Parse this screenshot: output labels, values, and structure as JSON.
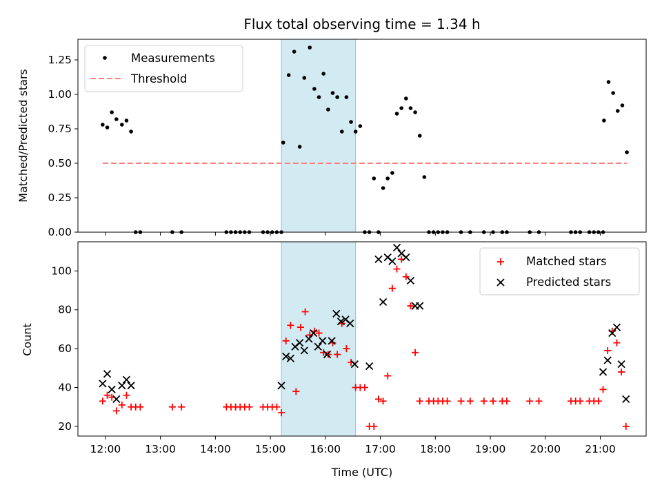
{
  "chart_data": [
    {
      "type": "scatter",
      "title": "Flux total observing time = 1.34 h",
      "xlabel": "",
      "ylabel": "Matched/Predicted stars",
      "xlim": [
        "11:30",
        "21:50"
      ],
      "ylim": [
        0,
        1.4
      ],
      "yticks": [
        "0.00",
        "0.25",
        "0.50",
        "0.75",
        "1.00",
        "1.25"
      ],
      "grid": false,
      "legend_position": "top-left",
      "shaded_interval": [
        "15:12",
        "16:33"
      ],
      "shade_color": "#add8e6",
      "series": [
        {
          "name": "Measurements",
          "color": "#000000",
          "marker": "dot",
          "points": [
            [
              "11:57",
              0.78
            ],
            [
              "12:02",
              0.76
            ],
            [
              "12:07",
              0.87
            ],
            [
              "12:12",
              0.82
            ],
            [
              "12:18",
              0.78
            ],
            [
              "12:23",
              0.81
            ],
            [
              "12:28",
              0.73
            ],
            [
              "12:33",
              0
            ],
            [
              "12:38",
              0
            ],
            [
              "13:13",
              0
            ],
            [
              "13:23",
              0
            ],
            [
              "14:12",
              0
            ],
            [
              "14:17",
              0
            ],
            [
              "14:22",
              0
            ],
            [
              "14:27",
              0
            ],
            [
              "14:32",
              0
            ],
            [
              "14:37",
              0
            ],
            [
              "14:52",
              0
            ],
            [
              "14:57",
              0
            ],
            [
              "15:02",
              0
            ],
            [
              "15:07",
              0
            ],
            [
              "15:12",
              0
            ],
            [
              "15:14",
              0.65
            ],
            [
              "15:20",
              1.14
            ],
            [
              "15:26",
              1.31
            ],
            [
              "15:32",
              0.62
            ],
            [
              "15:37",
              1.12
            ],
            [
              "15:43",
              1.34
            ],
            [
              "15:48",
              1.04
            ],
            [
              "15:53",
              0.98
            ],
            [
              "15:58",
              1.15
            ],
            [
              "16:03",
              0.89
            ],
            [
              "16:08",
              1.01
            ],
            [
              "16:13",
              0.98
            ],
            [
              "16:18",
              0.73
            ],
            [
              "16:23",
              0.98
            ],
            [
              "16:28",
              0.8
            ],
            [
              "16:33",
              0.73
            ],
            [
              "16:38",
              0.77
            ],
            [
              "16:43",
              0
            ],
            [
              "16:48",
              0
            ],
            [
              "16:53",
              0.39
            ],
            [
              "16:58",
              0
            ],
            [
              "17:03",
              0.32
            ],
            [
              "17:08",
              0.39
            ],
            [
              "17:13",
              0.43
            ],
            [
              "17:18",
              0.86
            ],
            [
              "17:23",
              0.9
            ],
            [
              "17:28",
              0.97
            ],
            [
              "17:33",
              0.9
            ],
            [
              "17:38",
              0.87
            ],
            [
              "17:43",
              0.7
            ],
            [
              "17:48",
              0.4
            ],
            [
              "17:53",
              0
            ],
            [
              "17:58",
              0
            ],
            [
              "18:03",
              0
            ],
            [
              "18:08",
              0
            ],
            [
              "18:13",
              0
            ],
            [
              "18:28",
              0
            ],
            [
              "18:38",
              0
            ],
            [
              "18:53",
              0
            ],
            [
              "19:03",
              0
            ],
            [
              "19:13",
              0
            ],
            [
              "19:18",
              0
            ],
            [
              "19:43",
              0
            ],
            [
              "19:53",
              0
            ],
            [
              "20:28",
              0
            ],
            [
              "20:33",
              0
            ],
            [
              "20:38",
              0
            ],
            [
              "20:48",
              0
            ],
            [
              "20:53",
              0
            ],
            [
              "20:58",
              0
            ],
            [
              "21:03",
              0
            ],
            [
              "21:04",
              0.81
            ],
            [
              "21:09",
              1.09
            ],
            [
              "21:14",
              1.01
            ],
            [
              "21:19",
              0.88
            ],
            [
              "21:24",
              0.92
            ],
            [
              "21:29",
              0.58
            ]
          ]
        },
        {
          "name": "Threshold",
          "color": "#ff7f7f",
          "line_style": "dashed",
          "points": [
            [
              "11:57",
              0.5
            ],
            [
              "21:29",
              0.5
            ]
          ]
        }
      ]
    },
    {
      "type": "scatter",
      "title": "",
      "xlabel": "Time (UTC)",
      "ylabel": "Count",
      "xlim": [
        "11:30",
        "21:50"
      ],
      "ylim": [
        15,
        115
      ],
      "yticks": [
        "20",
        "40",
        "60",
        "80",
        "100"
      ],
      "xticks": [
        "12:00",
        "13:00",
        "14:00",
        "15:00",
        "16:00",
        "17:00",
        "18:00",
        "19:00",
        "20:00",
        "21:00"
      ],
      "grid": false,
      "legend_position": "top-right",
      "shaded_interval": [
        "15:12",
        "16:33"
      ],
      "shade_color": "#add8e6",
      "series": [
        {
          "name": "Matched stars",
          "color": "#ff0000",
          "marker": "plus",
          "points": [
            [
              "11:57",
              33
            ],
            [
              "12:02",
              36
            ],
            [
              "12:07",
              35
            ],
            [
              "12:12",
              28
            ],
            [
              "12:18",
              31
            ],
            [
              "12:23",
              36
            ],
            [
              "12:28",
              30
            ],
            [
              "12:33",
              30
            ],
            [
              "12:38",
              30
            ],
            [
              "13:13",
              30
            ],
            [
              "13:23",
              30
            ],
            [
              "14:12",
              30
            ],
            [
              "14:17",
              30
            ],
            [
              "14:22",
              30
            ],
            [
              "14:27",
              30
            ],
            [
              "14:32",
              30
            ],
            [
              "14:37",
              30
            ],
            [
              "14:52",
              30
            ],
            [
              "14:57",
              30
            ],
            [
              "15:02",
              30
            ],
            [
              "15:07",
              30
            ],
            [
              "15:12",
              27
            ],
            [
              "15:17",
              64
            ],
            [
              "15:22",
              72
            ],
            [
              "15:28",
              38
            ],
            [
              "15:33",
              71
            ],
            [
              "15:38",
              79
            ],
            [
              "15:43",
              67
            ],
            [
              "15:48",
              69
            ],
            [
              "15:53",
              68
            ],
            [
              "15:58",
              58
            ],
            [
              "16:03",
              57
            ],
            [
              "16:08",
              63
            ],
            [
              "16:13",
              57
            ],
            [
              "16:18",
              73
            ],
            [
              "16:23",
              60
            ],
            [
              "16:28",
              53
            ],
            [
              "16:33",
              40
            ],
            [
              "16:38",
              40
            ],
            [
              "16:43",
              40
            ],
            [
              "16:48",
              20
            ],
            [
              "16:53",
              20
            ],
            [
              "16:58",
              34
            ],
            [
              "17:03",
              33
            ],
            [
              "17:08",
              46
            ],
            [
              "17:13",
              91
            ],
            [
              "17:18",
              101
            ],
            [
              "17:23",
              106
            ],
            [
              "17:28",
              97
            ],
            [
              "17:33",
              82
            ],
            [
              "17:38",
              58
            ],
            [
              "17:43",
              33
            ],
            [
              "17:53",
              33
            ],
            [
              "17:58",
              33
            ],
            [
              "18:03",
              33
            ],
            [
              "18:08",
              33
            ],
            [
              "18:13",
              33
            ],
            [
              "18:28",
              33
            ],
            [
              "18:38",
              33
            ],
            [
              "18:53",
              33
            ],
            [
              "19:03",
              33
            ],
            [
              "19:13",
              33
            ],
            [
              "19:18",
              33
            ],
            [
              "19:43",
              33
            ],
            [
              "19:53",
              33
            ],
            [
              "20:28",
              33
            ],
            [
              "20:33",
              33
            ],
            [
              "20:38",
              33
            ],
            [
              "20:48",
              33
            ],
            [
              "20:53",
              33
            ],
            [
              "20:58",
              33
            ],
            [
              "21:03",
              39
            ],
            [
              "21:08",
              59
            ],
            [
              "21:13",
              69
            ],
            [
              "21:18",
              63
            ],
            [
              "21:23",
              48
            ],
            [
              "21:28",
              20
            ]
          ]
        },
        {
          "name": "Predicted stars",
          "color": "#000000",
          "marker": "x",
          "points": [
            [
              "11:57",
              42
            ],
            [
              "12:02",
              47
            ],
            [
              "12:07",
              39
            ],
            [
              "12:12",
              34
            ],
            [
              "12:18",
              41
            ],
            [
              "12:23",
              44
            ],
            [
              "12:28",
              41
            ],
            [
              "15:12",
              41
            ],
            [
              "15:17",
              56
            ],
            [
              "15:22",
              55
            ],
            [
              "15:27",
              61
            ],
            [
              "15:32",
              63
            ],
            [
              "15:37",
              59
            ],
            [
              "15:42",
              65
            ],
            [
              "15:47",
              68
            ],
            [
              "15:52",
              61
            ],
            [
              "15:57",
              64
            ],
            [
              "16:02",
              57
            ],
            [
              "16:07",
              64
            ],
            [
              "16:12",
              78
            ],
            [
              "16:17",
              74
            ],
            [
              "16:22",
              75
            ],
            [
              "16:27",
              73
            ],
            [
              "16:32",
              52
            ],
            [
              "16:48",
              51
            ],
            [
              "16:58",
              106
            ],
            [
              "17:03",
              84
            ],
            [
              "17:08",
              107
            ],
            [
              "17:13",
              105
            ],
            [
              "17:18",
              112
            ],
            [
              "17:23",
              109
            ],
            [
              "17:28",
              107
            ],
            [
              "17:33",
              95
            ],
            [
              "17:38",
              82
            ],
            [
              "17:43",
              82
            ],
            [
              "21:03",
              48
            ],
            [
              "21:08",
              54
            ],
            [
              "21:13",
              68
            ],
            [
              "21:18",
              71
            ],
            [
              "21:23",
              52
            ],
            [
              "21:28",
              34
            ]
          ]
        }
      ]
    }
  ]
}
